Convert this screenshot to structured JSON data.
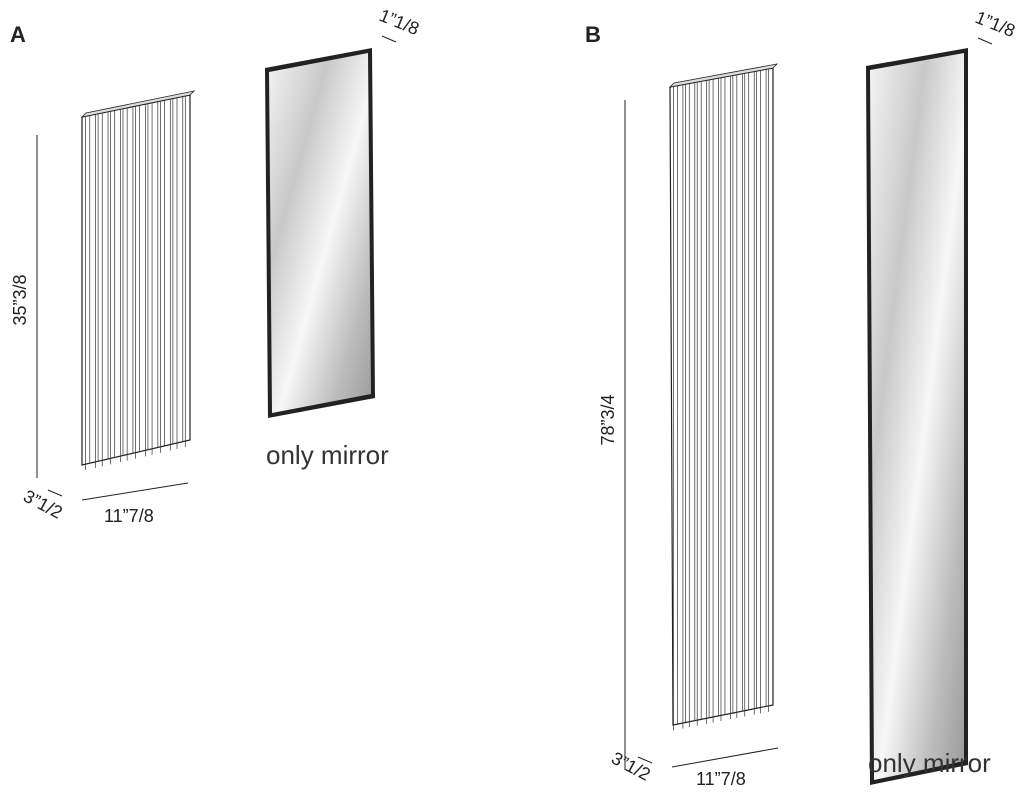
{
  "panels": [
    {
      "label": "A",
      "mirror_thickness": "1”1/8",
      "height": "35”3/8",
      "depth": "3”1/2",
      "width": "11”7/8",
      "caption": "only mirror"
    },
    {
      "label": "B",
      "mirror_thickness": "1”1/8",
      "height": "78”3/4",
      "depth": "3”1/2",
      "width": "11”7/8",
      "caption": "only mirror"
    }
  ]
}
